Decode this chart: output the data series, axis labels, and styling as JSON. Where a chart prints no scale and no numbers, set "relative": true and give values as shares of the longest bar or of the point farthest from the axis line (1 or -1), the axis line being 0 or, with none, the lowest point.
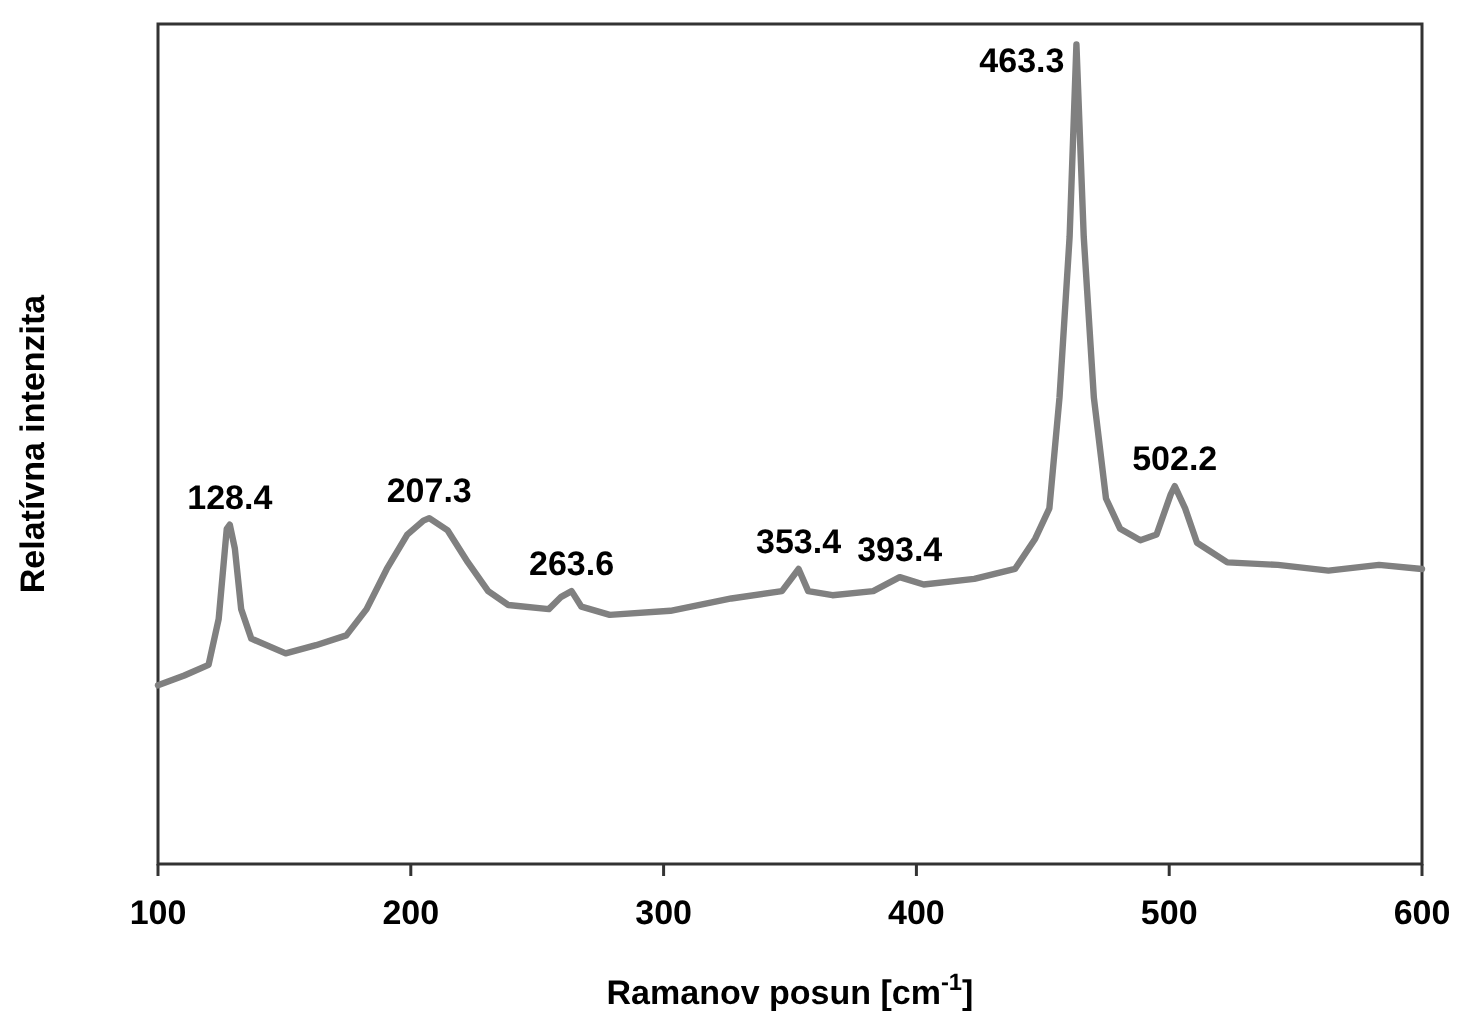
{
  "chart_data": {
    "type": "line",
    "xlabel": "Ramanov posun [cm$^{-1}$]",
    "ylabel": "Relatívna intenzita",
    "relative": true,
    "xlim": [
      100,
      600
    ],
    "xticks": [
      100,
      200,
      300,
      400,
      500,
      600
    ],
    "x": [
      100,
      110.4,
      120,
      124,
      127.2,
      128.4,
      130.4,
      132.9,
      136.9,
      150.5,
      162.5,
      174.5,
      182.5,
      190.5,
      198.6,
      205,
      207.3,
      214.6,
      222.6,
      230.6,
      238.6,
      254.6,
      259.5,
      263.6,
      267.5,
      278.7,
      302.7,
      326.8,
      346.8,
      353.4,
      357.2,
      366.8,
      382.9,
      393.4,
      402.9,
      422.9,
      439,
      447,
      452.6,
      456.6,
      460.6,
      463.3,
      466.2,
      470.2,
      475,
      480.6,
      488.6,
      495,
      500.6,
      502.2,
      506.3,
      511,
      523,
      543,
      563,
      583,
      600
    ],
    "series": [
      {
        "color": "#808080",
        "values": [
          0.218,
          0.23,
          0.243,
          0.299,
          0.409,
          0.414,
          0.385,
          0.311,
          0.275,
          0.257,
          0.267,
          0.279,
          0.311,
          0.36,
          0.402,
          0.419,
          0.422,
          0.407,
          0.368,
          0.333,
          0.316,
          0.311,
          0.326,
          0.333,
          0.314,
          0.304,
          0.309,
          0.324,
          0.333,
          0.36,
          0.333,
          0.328,
          0.333,
          0.35,
          0.341,
          0.348,
          0.36,
          0.397,
          0.434,
          0.569,
          0.765,
          1,
          0.765,
          0.569,
          0.446,
          0.409,
          0.395,
          0.402,
          0.451,
          0.461,
          0.434,
          0.392,
          0.368,
          0.365,
          0.358,
          0.365,
          0.36
        ]
      }
    ],
    "annotations": [
      {
        "text": "128.4",
        "x": 128.4,
        "y": 0.414
      },
      {
        "text": "207.3",
        "x": 207.3,
        "y": 0.422
      },
      {
        "text": "263.6",
        "x": 263.6,
        "y": 0.333
      },
      {
        "text": "353.4",
        "x": 353.4,
        "y": 0.36
      },
      {
        "text": "393.4",
        "x": 393.4,
        "y": 0.35
      },
      {
        "text": "463.3",
        "x": 463.3,
        "y": 1
      },
      {
        "text": "502.2",
        "x": 502.2,
        "y": 0.461
      }
    ],
    "grid": false,
    "marker": "none",
    "line_style": "solid"
  }
}
